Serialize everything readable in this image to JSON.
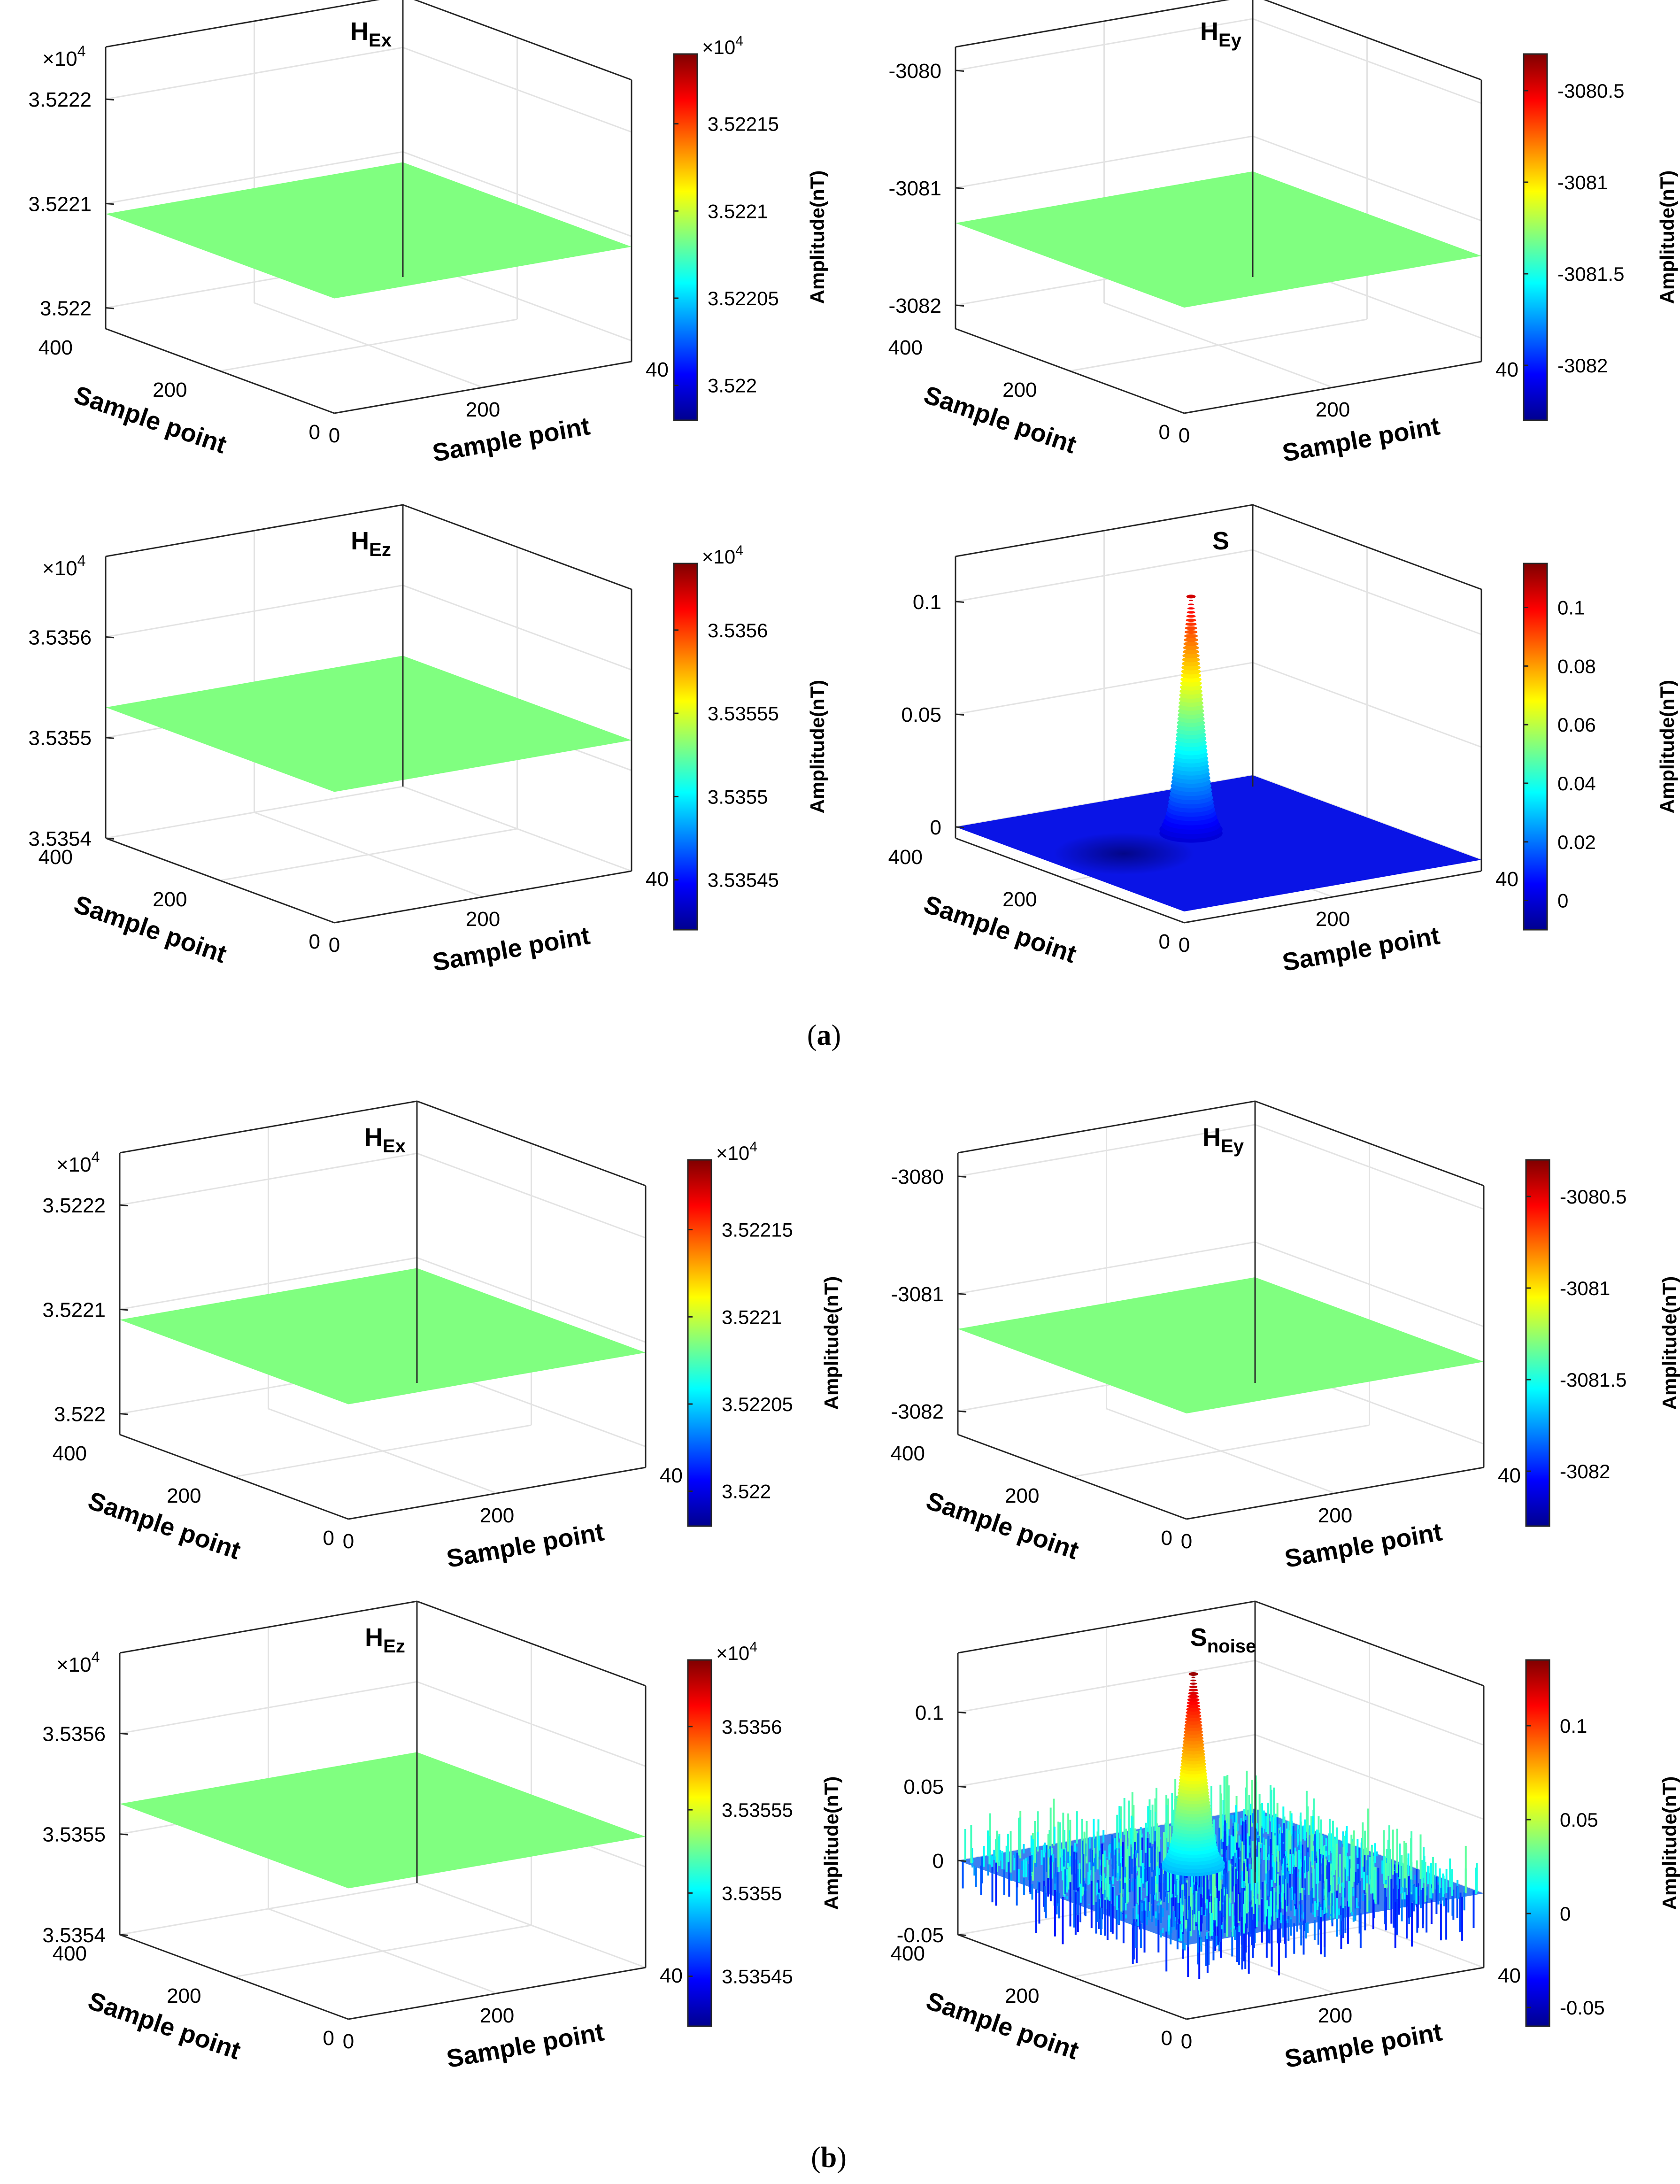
{
  "figure": {
    "caption_a": "a",
    "caption_b": "b"
  },
  "colors": {
    "axis": "#262626",
    "grid": "#e3e3e3",
    "flat_surface": "#80ff80",
    "background": "#ffffff"
  },
  "chart_data": [
    {
      "id": "a1",
      "group": "a",
      "type": "surface",
      "title": "H",
      "title_sub": "Ex",
      "zlabel": "",
      "z_exponent_label": "×10",
      "z_exponent": "4",
      "z_ticks": [
        "3.5222",
        "3.5221",
        "3.522"
      ],
      "z_tick_values": [
        3.5222,
        3.5221,
        3.522
      ],
      "zlim": [
        3.52198,
        3.52225
      ],
      "surface_value": 3.52209,
      "xlabel": "Sample point",
      "ylabel": "Sample point",
      "x_ticks": [
        "0",
        "200",
        "40"
      ],
      "y_ticks": [
        "400",
        "200",
        "0"
      ],
      "colorbar": {
        "label": "Amplitude(nT)",
        "exponent_label": "×10",
        "exponent": "4",
        "ticks": [
          "3.52215",
          "3.5221",
          "3.52205",
          "3.522"
        ],
        "tick_values": [
          3.52215,
          3.5221,
          3.52205,
          3.522
        ],
        "range": [
          3.52198,
          3.52219
        ]
      },
      "surface": "flat"
    },
    {
      "id": "a2",
      "group": "a",
      "type": "surface",
      "title": "H",
      "title_sub": "Ey",
      "zlabel": "",
      "z_exponent_label": "",
      "z_exponent": "",
      "z_ticks": [
        "-3080",
        "-3081",
        "-3082"
      ],
      "z_tick_values": [
        -3080,
        -3081,
        -3082
      ],
      "zlim": [
        -3082.2,
        -3079.8
      ],
      "surface_value": -3081.3,
      "xlabel": "Sample point",
      "ylabel": "Sample point",
      "x_ticks": [
        "0",
        "200",
        "40"
      ],
      "y_ticks": [
        "400",
        "200",
        "0"
      ],
      "colorbar": {
        "label": "Amplitude(nT)",
        "exponent_label": "",
        "exponent": "",
        "ticks": [
          "-3080.5",
          "-3081",
          "-3081.5",
          "-3082"
        ],
        "tick_values": [
          -3080.5,
          -3081,
          -3081.5,
          -3082
        ],
        "range": [
          -3082.3,
          -3080.3
        ]
      },
      "surface": "flat"
    },
    {
      "id": "a3",
      "group": "a",
      "type": "surface",
      "title": "H",
      "title_sub": "Ez",
      "zlabel": "",
      "z_exponent_label": "×10",
      "z_exponent": "4",
      "z_ticks": [
        "3.5356",
        "3.5355",
        "3.5354"
      ],
      "z_tick_values": [
        3.5356,
        3.5355,
        3.5354
      ],
      "zlim": [
        3.5354,
        3.53568
      ],
      "surface_value": 3.53553,
      "xlabel": "Sample point",
      "ylabel": "Sample point",
      "x_ticks": [
        "0",
        "200",
        "40"
      ],
      "y_ticks": [
        "400",
        "200",
        "0"
      ],
      "colorbar": {
        "label": "Amplitude(nT)",
        "exponent_label": "×10",
        "exponent": "4",
        "ticks": [
          "3.5356",
          "3.53555",
          "3.5355",
          "3.53545"
        ],
        "tick_values": [
          3.5356,
          3.53555,
          3.5355,
          3.53545
        ],
        "range": [
          3.53542,
          3.53564
        ]
      },
      "surface": "flat"
    },
    {
      "id": "a4",
      "group": "a",
      "type": "surface",
      "title": "S",
      "title_sub": "",
      "zlabel": "",
      "z_exponent_label": "",
      "z_exponent": "",
      "z_ticks": [
        "0.1",
        "0.05",
        "0"
      ],
      "z_tick_values": [
        0.1,
        0.05,
        0
      ],
      "zlim": [
        -0.005,
        0.12
      ],
      "surface_value": 0,
      "xlabel": "Sample point",
      "ylabel": "Sample point",
      "x_ticks": [
        "0",
        "200",
        "40"
      ],
      "y_ticks": [
        "400",
        "200",
        "0"
      ],
      "colorbar": {
        "label": "Amplitude(nT)",
        "exponent_label": "",
        "exponent": "",
        "ticks": [
          "0.1",
          "0.08",
          "0.06",
          "0.04",
          "0.02",
          "0"
        ],
        "tick_values": [
          0.1,
          0.08,
          0.06,
          0.04,
          0.02,
          0
        ],
        "range": [
          -0.01,
          0.115
        ]
      },
      "surface": "peak",
      "peak_value": 0.105
    },
    {
      "id": "b1",
      "group": "b",
      "type": "surface",
      "title": "H",
      "title_sub": "Ex",
      "zlabel": "",
      "z_exponent_label": "×10",
      "z_exponent": "4",
      "z_ticks": [
        "3.5222",
        "3.5221",
        "3.522"
      ],
      "z_tick_values": [
        3.5222,
        3.5221,
        3.522
      ],
      "zlim": [
        3.52198,
        3.52225
      ],
      "surface_value": 3.52209,
      "xlabel": "Sample point",
      "ylabel": "Sample point",
      "x_ticks": [
        "0",
        "200",
        "40"
      ],
      "y_ticks": [
        "400",
        "200",
        "0"
      ],
      "colorbar": {
        "label": "Amplitude(nT)",
        "exponent_label": "×10",
        "exponent": "4",
        "ticks": [
          "3.52215",
          "3.5221",
          "3.52205",
          "3.522"
        ],
        "tick_values": [
          3.52215,
          3.5221,
          3.52205,
          3.522
        ],
        "range": [
          3.52198,
          3.52219
        ]
      },
      "surface": "flat"
    },
    {
      "id": "b2",
      "group": "b",
      "type": "surface",
      "title": "H",
      "title_sub": "Ey",
      "zlabel": "",
      "z_exponent_label": "",
      "z_exponent": "",
      "z_ticks": [
        "-3080",
        "-3081",
        "-3082"
      ],
      "z_tick_values": [
        -3080,
        -3081,
        -3082
      ],
      "zlim": [
        -3082.2,
        -3079.8
      ],
      "surface_value": -3081.3,
      "xlabel": "Sample point",
      "ylabel": "Sample point",
      "x_ticks": [
        "0",
        "200",
        "40"
      ],
      "y_ticks": [
        "400",
        "200",
        "0"
      ],
      "colorbar": {
        "label": "Amplitude(nT)",
        "exponent_label": "",
        "exponent": "",
        "ticks": [
          "-3080.5",
          "-3081",
          "-3081.5",
          "-3082"
        ],
        "tick_values": [
          -3080.5,
          -3081,
          -3081.5,
          -3082
        ],
        "range": [
          -3082.3,
          -3080.3
        ]
      },
      "surface": "flat"
    },
    {
      "id": "b3",
      "group": "b",
      "type": "surface",
      "title": "H",
      "title_sub": "Ez",
      "zlabel": "",
      "z_exponent_label": "×10",
      "z_exponent": "4",
      "z_ticks": [
        "3.5356",
        "3.5355",
        "3.5354"
      ],
      "z_tick_values": [
        3.5356,
        3.5355,
        3.5354
      ],
      "zlim": [
        3.5354,
        3.53568
      ],
      "surface_value": 3.53553,
      "xlabel": "Sample point",
      "ylabel": "Sample point",
      "x_ticks": [
        "0",
        "200",
        "40"
      ],
      "y_ticks": [
        "400",
        "200",
        "0"
      ],
      "colorbar": {
        "label": "Amplitude(nT)",
        "exponent_label": "×10",
        "exponent": "4",
        "ticks": [
          "3.5356",
          "3.53555",
          "3.5355",
          "3.53545"
        ],
        "tick_values": [
          3.5356,
          3.53555,
          3.5355,
          3.53545
        ],
        "range": [
          3.53542,
          3.53564
        ]
      },
      "surface": "flat"
    },
    {
      "id": "b4",
      "group": "b",
      "type": "surface",
      "title": "S",
      "title_sub": "noise",
      "zlabel": "",
      "z_exponent_label": "",
      "z_exponent": "",
      "z_ticks": [
        "0.1",
        "0.05",
        "0",
        "-0.05"
      ],
      "z_tick_values": [
        0.1,
        0.05,
        0,
        -0.05
      ],
      "zlim": [
        -0.05,
        0.14
      ],
      "surface_value": 0,
      "xlabel": "Sample point",
      "ylabel": "Sample point",
      "x_ticks": [
        "0",
        "200",
        "40"
      ],
      "y_ticks": [
        "400",
        "200",
        "0"
      ],
      "colorbar": {
        "label": "Amplitude(nT)",
        "exponent_label": "",
        "exponent": "",
        "ticks": [
          "0.1",
          "0.05",
          "0",
          "-0.05"
        ],
        "tick_values": [
          0.1,
          0.05,
          0,
          -0.05
        ],
        "range": [
          -0.06,
          0.135
        ]
      },
      "surface": "noisy_peak",
      "peak_value": 0.13,
      "noise_amplitude": 0.02
    }
  ]
}
